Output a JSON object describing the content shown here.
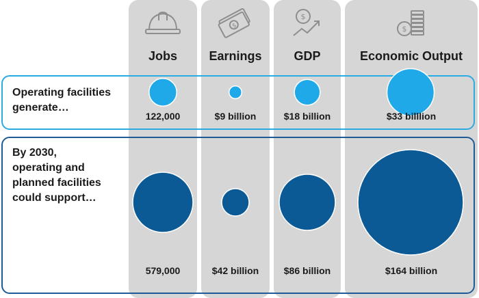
{
  "colors": {
    "column_bg": "#d6d6d6",
    "current_row_border": "#29aae1",
    "future_row_border": "#1e5a96",
    "current_bubble": "#1fa9e8",
    "future_bubble": "#0b5a96"
  },
  "columns": [
    {
      "header": "Jobs",
      "icon": "hard-hat-icon"
    },
    {
      "header": "Earnings",
      "icon": "money-bills-icon"
    },
    {
      "header": "GDP",
      "icon": "growth-chart-coin-icon"
    },
    {
      "header": "Economic Output",
      "icon": "coin-stack-icon"
    }
  ],
  "rows": [
    {
      "label_lines": [
        "Operating facilities",
        "generate…"
      ]
    },
    {
      "label_lines": [
        "By 2030,",
        "operating and",
        "planned facilities",
        "could support…"
      ]
    }
  ],
  "chart_data": {
    "type": "bubble",
    "categories": [
      "Jobs",
      "Earnings",
      "GDP",
      "Economic Output"
    ],
    "series": [
      {
        "name": "Operating facilities generate…",
        "values": [
          122000,
          9,
          18,
          33
        ],
        "labels": [
          "122,000",
          "$9 billion",
          "$18 billion",
          "$33 billlion"
        ]
      },
      {
        "name": "By 2030, operating and planned facilities could support…",
        "values": [
          579000,
          42,
          86,
          164
        ],
        "labels": [
          "579,000",
          "$42 billion",
          "$86 billion",
          "$164 billion"
        ]
      }
    ]
  }
}
